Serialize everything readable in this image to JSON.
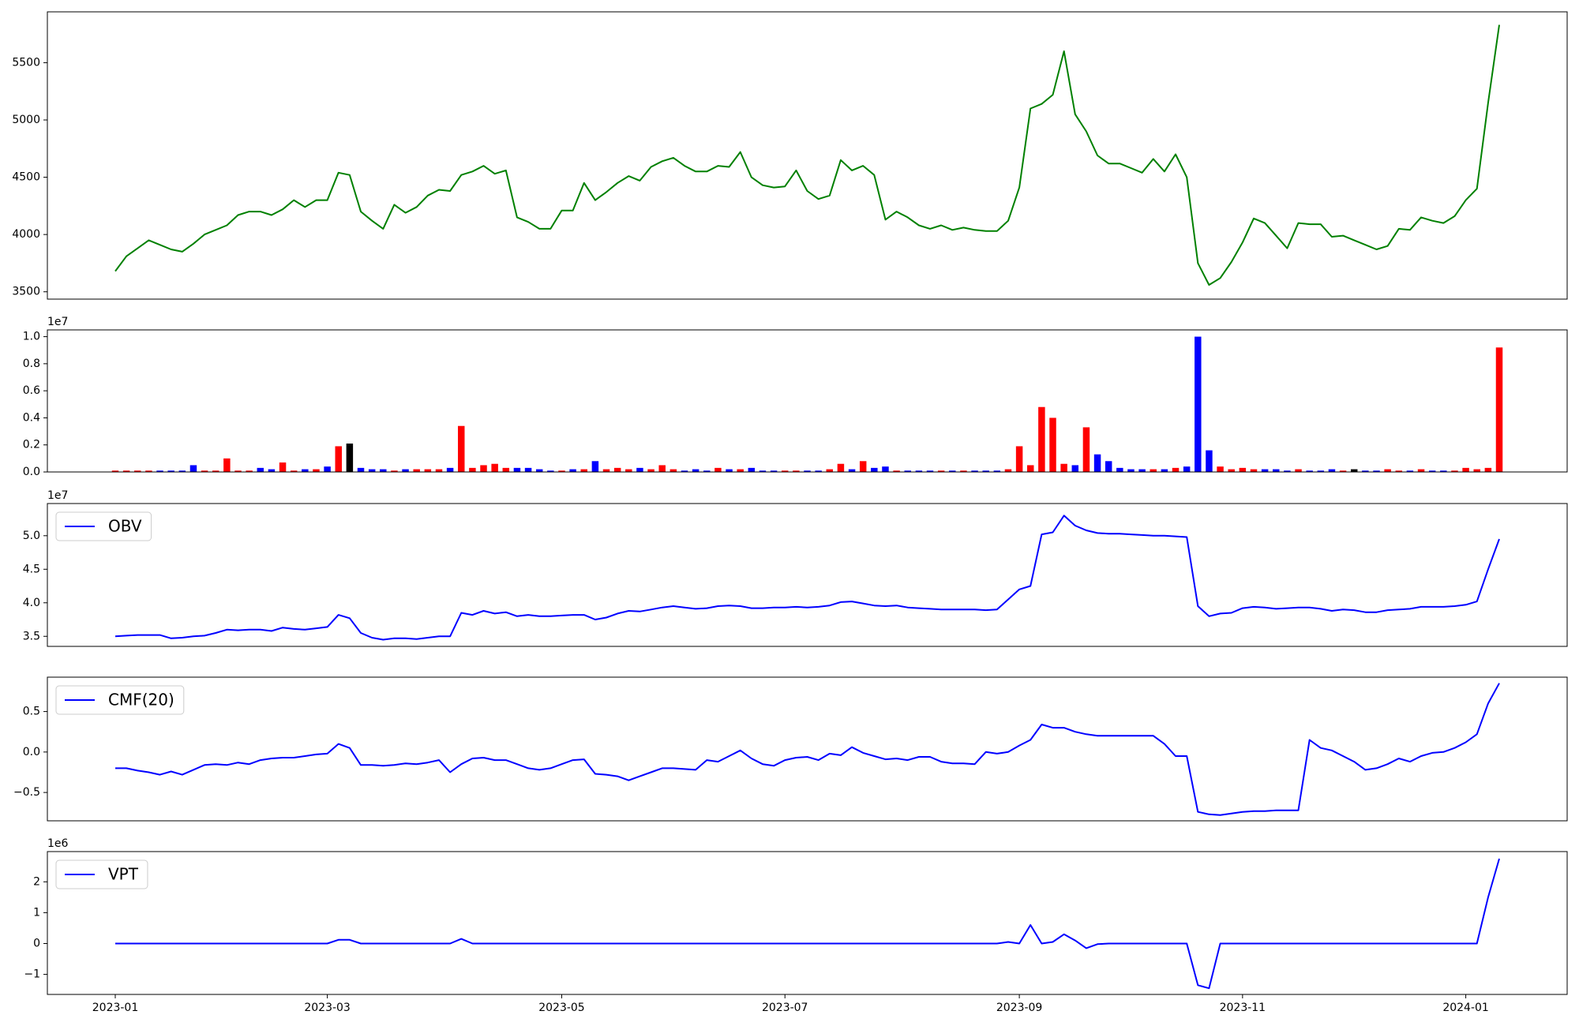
{
  "chart_data": [
    {
      "type": "line",
      "series": [
        {
          "color": "green",
          "values": [
            3680,
            3810,
            3880,
            3950,
            3910,
            3870,
            3850,
            3920,
            4000,
            4040,
            4080,
            4170,
            4200,
            4200,
            4170,
            4220,
            4300,
            4240,
            4300,
            4300,
            4540,
            4520,
            4200,
            4120,
            4050,
            4260,
            4190,
            4240,
            4340,
            4390,
            4380,
            4520,
            4550,
            4600,
            4530,
            4560,
            4150,
            4110,
            4050,
            4050,
            4210,
            4210,
            4450,
            4300,
            4370,
            4450,
            4510,
            4470,
            4590,
            4640,
            4670,
            4600,
            4550,
            4550,
            4600,
            4590,
            4720,
            4500,
            4430,
            4410,
            4420,
            4560,
            4380,
            4310,
            4340,
            4650,
            4560,
            4600,
            4520,
            4130,
            4200,
            4150,
            4080,
            4050,
            4080,
            4040,
            4060,
            4040,
            4030,
            4030,
            4120,
            4410,
            5100,
            5140,
            5220,
            5600,
            5050,
            4900,
            4690,
            4620,
            4620,
            4580,
            4540,
            4660,
            4550,
            4700,
            4500,
            3750,
            3560,
            3620,
            3760,
            3930,
            4140,
            4100,
            3990,
            3880,
            4100,
            4090,
            4090,
            3980,
            3990,
            3950,
            3910,
            3870,
            3900,
            4050,
            4040,
            4150,
            4120,
            4100,
            4160,
            4300,
            4400,
            5150,
            5830
          ]
        }
      ],
      "ylim": [
        3436,
        5944
      ],
      "yticks": [
        3500,
        4000,
        4500,
        5000,
        5500
      ]
    },
    {
      "type": "bar",
      "values": [
        0.01,
        0.01,
        0.01,
        0.01,
        0.01,
        0.01,
        0.01,
        0.05,
        0.01,
        0.01,
        0.1,
        0.01,
        0.01,
        0.03,
        0.02,
        0.07,
        0.01,
        0.02,
        0.02,
        0.04,
        0.19,
        0.21,
        0.03,
        0.02,
        0.02,
        0.01,
        0.02,
        0.02,
        0.02,
        0.02,
        0.03,
        0.34,
        0.03,
        0.05,
        0.06,
        0.03,
        0.03,
        0.03,
        0.02,
        0.01,
        0.01,
        0.02,
        0.02,
        0.08,
        0.02,
        0.03,
        0.02,
        0.03,
        0.02,
        0.05,
        0.02,
        0.01,
        0.02,
        0.01,
        0.03,
        0.02,
        0.02,
        0.03,
        0.01,
        0.01,
        0.01,
        0.01,
        0.01,
        0.01,
        0.02,
        0.06,
        0.02,
        0.08,
        0.03,
        0.04,
        0.01,
        0.01,
        0.01,
        0.01,
        0.01,
        0.01,
        0.01,
        0.01,
        0.01,
        0.01,
        0.02,
        0.19,
        0.05,
        0.48,
        0.4,
        0.06,
        0.05,
        0.33,
        0.13,
        0.08,
        0.03,
        0.02,
        0.02,
        0.02,
        0.02,
        0.03,
        0.04,
        1.0,
        0.16,
        0.04,
        0.02,
        0.03,
        0.02,
        0.02,
        0.02,
        0.01,
        0.02,
        0.01,
        0.01,
        0.02,
        0.01,
        0.02,
        0.01,
        0.01,
        0.02,
        0.01,
        0.01,
        0.02,
        0.01,
        0.01,
        0.01,
        0.03,
        0.02,
        0.03,
        0.92
      ],
      "colors": [
        "red",
        "red",
        "red",
        "red",
        "blue",
        "blue",
        "blue",
        "blue",
        "red",
        "red",
        "red",
        "red",
        "red",
        "blue",
        "blue",
        "red",
        "red",
        "blue",
        "red",
        "blue",
        "red",
        "black",
        "blue",
        "blue",
        "blue",
        "red",
        "blue",
        "red",
        "red",
        "red",
        "blue",
        "red",
        "red",
        "red",
        "red",
        "red",
        "blue",
        "blue",
        "blue",
        "blue",
        "red",
        "blue",
        "red",
        "blue",
        "red",
        "red",
        "red",
        "blue",
        "red",
        "red",
        "red",
        "blue",
        "blue",
        "blue",
        "red",
        "blue",
        "red",
        "blue",
        "blue",
        "blue",
        "red",
        "red",
        "blue",
        "blue",
        "red",
        "red",
        "blue",
        "red",
        "blue",
        "blue",
        "red",
        "blue",
        "blue",
        "blue",
        "red",
        "blue",
        "red",
        "blue",
        "blue",
        "blue",
        "red",
        "red",
        "red",
        "red",
        "red",
        "red",
        "blue",
        "red",
        "blue",
        "blue",
        "blue",
        "blue",
        "blue",
        "red",
        "blue",
        "red",
        "blue",
        "blue",
        "blue",
        "red",
        "red",
        "red",
        "red",
        "blue",
        "blue",
        "blue",
        "red",
        "blue",
        "blue",
        "blue",
        "red",
        "black",
        "blue",
        "blue",
        "red",
        "red",
        "blue",
        "red",
        "blue",
        "blue",
        "red",
        "red",
        "red",
        "red",
        "red"
      ],
      "y_offset_label": "1e7",
      "ylim": [
        0,
        1.05
      ],
      "yticks": [
        {
          "value": 0,
          "label": "0.0"
        },
        {
          "value": 0.2,
          "label": "0.2"
        },
        {
          "value": 0.4,
          "label": "0.4"
        },
        {
          "value": 0.6,
          "label": "0.6"
        },
        {
          "value": 0.8,
          "label": "0.8"
        },
        {
          "value": 1,
          "label": "1.0"
        }
      ]
    },
    {
      "type": "line",
      "series": [
        {
          "name": "OBV",
          "color": "blue",
          "values": [
            3.5,
            3.51,
            3.52,
            3.52,
            3.52,
            3.47,
            3.48,
            3.5,
            3.51,
            3.55,
            3.6,
            3.59,
            3.6,
            3.6,
            3.58,
            3.63,
            3.61,
            3.6,
            3.62,
            3.64,
            3.82,
            3.77,
            3.55,
            3.48,
            3.45,
            3.47,
            3.47,
            3.46,
            3.48,
            3.5,
            3.5,
            3.85,
            3.82,
            3.88,
            3.84,
            3.86,
            3.8,
            3.82,
            3.8,
            3.8,
            3.81,
            3.82,
            3.82,
            3.75,
            3.78,
            3.84,
            3.88,
            3.87,
            3.9,
            3.93,
            3.95,
            3.93,
            3.91,
            3.92,
            3.95,
            3.96,
            3.95,
            3.92,
            3.92,
            3.93,
            3.93,
            3.94,
            3.93,
            3.94,
            3.96,
            4.01,
            4.02,
            3.99,
            3.96,
            3.95,
            3.96,
            3.93,
            3.92,
            3.91,
            3.9,
            3.9,
            3.9,
            3.9,
            3.89,
            3.9,
            4.05,
            4.2,
            4.25,
            5.02,
            5.05,
            5.3,
            5.15,
            5.08,
            5.04,
            5.03,
            5.03,
            5.02,
            5.01,
            5.0,
            5.0,
            4.99,
            4.98,
            3.95,
            3.8,
            3.84,
            3.85,
            3.92,
            3.94,
            3.93,
            3.91,
            3.92,
            3.93,
            3.93,
            3.91,
            3.88,
            3.9,
            3.89,
            3.86,
            3.86,
            3.89,
            3.9,
            3.91,
            3.94,
            3.94,
            3.94,
            3.95,
            3.97,
            4.02,
            4.5,
            4.95
          ]
        }
      ],
      "y_offset_label": "1e7",
      "legend": "upper left",
      "ylim": [
        3.35,
        5.48
      ],
      "yticks": [
        3.5,
        {
          "value": 4,
          "label": "4.0"
        },
        4.5,
        {
          "value": 5,
          "label": "5.0"
        }
      ]
    },
    {
      "type": "line",
      "series": [
        {
          "name": "CMF(20)",
          "color": "blue",
          "values": [
            -0.2,
            -0.2,
            -0.23,
            -0.25,
            -0.28,
            -0.24,
            -0.28,
            -0.22,
            -0.16,
            -0.15,
            -0.16,
            -0.13,
            -0.15,
            -0.1,
            -0.08,
            -0.07,
            -0.07,
            -0.05,
            -0.03,
            -0.02,
            0.1,
            0.05,
            -0.16,
            -0.16,
            -0.17,
            -0.16,
            -0.14,
            -0.15,
            -0.13,
            -0.1,
            -0.25,
            -0.15,
            -0.08,
            -0.07,
            -0.1,
            -0.1,
            -0.15,
            -0.2,
            -0.22,
            -0.2,
            -0.15,
            -0.1,
            -0.09,
            -0.27,
            -0.28,
            -0.3,
            -0.35,
            -0.3,
            -0.25,
            -0.2,
            -0.2,
            -0.21,
            -0.22,
            -0.1,
            -0.12,
            -0.05,
            0.02,
            -0.08,
            -0.15,
            -0.17,
            -0.1,
            -0.07,
            -0.06,
            -0.1,
            -0.02,
            -0.04,
            0.06,
            -0.01,
            -0.05,
            -0.09,
            -0.08,
            -0.1,
            -0.06,
            -0.06,
            -0.12,
            -0.14,
            -0.14,
            -0.15,
            0.0,
            -0.02,
            0.0,
            0.08,
            0.15,
            0.34,
            0.3,
            0.3,
            0.25,
            0.22,
            0.2,
            0.2,
            0.2,
            0.2,
            0.2,
            0.2,
            0.1,
            -0.05,
            -0.05,
            -0.74,
            -0.77,
            -0.78,
            -0.76,
            -0.74,
            -0.73,
            -0.73,
            -0.72,
            -0.72,
            -0.72,
            0.15,
            0.05,
            0.02,
            -0.05,
            -0.12,
            -0.22,
            -0.2,
            -0.15,
            -0.08,
            -0.12,
            -0.05,
            -0.01,
            0.0,
            0.05,
            0.12,
            0.22,
            0.6,
            0.85
          ]
        }
      ],
      "legend": "upper left",
      "ylim": [
        -0.85,
        0.925
      ],
      "yticks": [
        {
          "value": -0.5,
          "label": "−0.5"
        },
        {
          "value": 0,
          "label": "0.0"
        },
        0.5
      ]
    },
    {
      "type": "line",
      "series": [
        {
          "name": "VPT",
          "color": "blue",
          "values": [
            0,
            0,
            0,
            0,
            0,
            0,
            0,
            0,
            0,
            0,
            0,
            0,
            0,
            0,
            0,
            0,
            0,
            0,
            0,
            0,
            0.12,
            0.12,
            0,
            0,
            0,
            0,
            0,
            0,
            0,
            0,
            0,
            0.15,
            0,
            0,
            0,
            0,
            0,
            0,
            0,
            0,
            0,
            0,
            0,
            0,
            0,
            0,
            0,
            0,
            0,
            0,
            0,
            0,
            0,
            0,
            0,
            0,
            0,
            0,
            0,
            0,
            0,
            0,
            0,
            0,
            0,
            0,
            0,
            0,
            0,
            0,
            0,
            0,
            0,
            0,
            0,
            0,
            0,
            0,
            0,
            0,
            0.05,
            0,
            0.6,
            0,
            0.05,
            0.3,
            0.1,
            -0.15,
            -0.02,
            0,
            0,
            0,
            0,
            0,
            0,
            0,
            0,
            -1.35,
            -1.45,
            0,
            0,
            0,
            0,
            0,
            0,
            0,
            0,
            0,
            0,
            0,
            0,
            0,
            0,
            0,
            0,
            0,
            0,
            0,
            0,
            0,
            0,
            0,
            0,
            1.5,
            2.75
          ]
        }
      ],
      "y_offset_label": "1e6",
      "legend": "upper left",
      "ylim": [
        -1.65,
        2.98
      ],
      "yticks": [
        {
          "value": -1,
          "label": "−1"
        },
        0,
        1,
        2
      ],
      "categories": [
        "2023-01",
        null,
        null,
        null,
        null,
        null,
        null,
        null,
        null,
        null,
        null,
        null,
        null,
        null,
        null,
        null,
        null,
        null,
        null,
        "2023-03",
        null,
        null,
        null,
        null,
        null,
        null,
        null,
        null,
        null,
        null,
        null,
        null,
        null,
        null,
        null,
        null,
        null,
        null,
        null,
        null,
        "2023-05",
        null,
        null,
        null,
        null,
        null,
        null,
        null,
        null,
        null,
        null,
        null,
        null,
        null,
        null,
        null,
        null,
        null,
        null,
        null,
        "2023-07",
        null,
        null,
        null,
        null,
        null,
        null,
        null,
        null,
        null,
        null,
        null,
        null,
        null,
        null,
        null,
        null,
        null,
        null,
        null,
        null,
        "2023-09",
        null,
        null,
        null,
        null,
        null,
        null,
        null,
        null,
        null,
        null,
        null,
        null,
        null,
        null,
        null,
        null,
        null,
        null,
        null,
        "2023-11",
        null,
        null,
        null,
        null,
        null,
        null,
        null,
        null,
        null,
        null,
        null,
        null,
        null,
        null,
        null,
        null,
        null,
        null,
        null,
        "2024-01",
        null,
        null,
        null
      ]
    }
  ]
}
